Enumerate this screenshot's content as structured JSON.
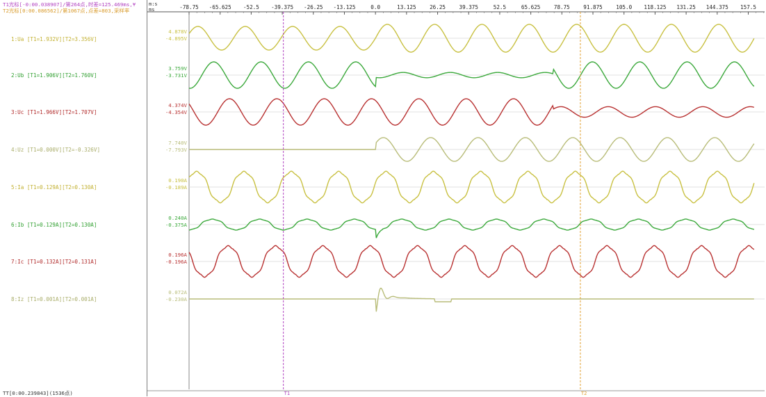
{
  "header": {
    "cursor1_info": "T1光标[-0:00.038907]/第264点,时差=125.469ms,¥",
    "cursor2_info": "T2光标[0:00.086562]/第1067点,点差=803,采样率",
    "time_unit_top": "m:s",
    "time_unit_bottom": "ms"
  },
  "footer": {
    "tt_info": "TT[0:00.239843](1536点)"
  },
  "cursors": [
    {
      "name": "T1",
      "color": "#b040c0"
    },
    {
      "name": "T2",
      "color": "#e0a030"
    }
  ],
  "channels": [
    {
      "label": "1:Ua [T1=1.932V][T2=3.356V]",
      "max": "4.878V",
      "min": "-4.895V",
      "color": "#c8c040"
    },
    {
      "label": "2:Ub [T1=1.906V][T2=1.760V]",
      "max": "3.759V",
      "min": "-3.731V",
      "color": "#3aa83a"
    },
    {
      "label": "3:Uc [T1=1.966V][T2=1.707V]",
      "max": "4.374V",
      "min": "-4.354V",
      "color": "#b83030"
    },
    {
      "label": "4:Uz [T1=0.000V][T2=-0.326V]",
      "max": "7.740V",
      "min": "-7.793V",
      "color": "#b8bc78"
    },
    {
      "label": "5:Ia [T1=0.129A][T2=0.130A]",
      "max": "0.190A",
      "min": "-0.189A",
      "color": "#c8c040"
    },
    {
      "label": "6:Ib [T1=0.129A][T2=0.130A]",
      "max": "0.240A",
      "min": "-0.375A",
      "color": "#3aa83a"
    },
    {
      "label": "7:Ic [T1=0.132A][T2=0.131A]",
      "max": "0.196A",
      "min": "-0.196A",
      "color": "#b83030"
    },
    {
      "label": "8:Iz [T1=0.001A][T2=0.001A]",
      "max": "0.072A",
      "min": "-0.230A",
      "color": "#b8bc78"
    }
  ],
  "chart_data": {
    "type": "line",
    "x_ticks": [
      "-78.75",
      "-65.625",
      "-52.5",
      "-39.375",
      "-26.25",
      "-13.125",
      "0.0",
      "13.125",
      "26.25",
      "39.375",
      "52.5",
      "65.625",
      "78.75",
      "91.875",
      "105.0",
      "118.125",
      "131.25",
      "144.375",
      "157.5"
    ],
    "x_tick_values": [
      -78.75,
      -65.625,
      -52.5,
      -39.375,
      -26.25,
      -13.125,
      0,
      13.125,
      26.25,
      39.375,
      52.5,
      65.625,
      78.75,
      91.875,
      105,
      118.125,
      131.25,
      144.375,
      157.5
    ],
    "xlim": [
      -78.75,
      160.0
    ],
    "period_ms": 20,
    "fault_start_ms": 0,
    "cursor_t1_ms": -38.907,
    "cursor_t2_ms": 86.562,
    "series": [
      {
        "name": "1:Ua",
        "pre_amp": 0.85,
        "post_amp": 1.0,
        "phase": 0
      },
      {
        "name": "2:Ub",
        "pre_amp": 1.0,
        "post_amp": 0.2,
        "post_amp_late": 1.0,
        "recover_ms": 75,
        "phase": -120
      },
      {
        "name": "3:Uc",
        "pre_amp": 1.0,
        "post_amp": 1.0,
        "post_amp_late": 0.4,
        "recover_ms": 75,
        "phase": 120
      },
      {
        "name": "4:Uz",
        "pre_amp": 0.0,
        "post_amp": 0.9,
        "phase": 30
      },
      {
        "name": "5:Ia",
        "pre_amp": 1.0,
        "post_amp": 1.0,
        "phase": 10
      },
      {
        "name": "6:Ib",
        "pre_amp": 0.7,
        "post_amp": 0.7,
        "phase": -110
      },
      {
        "name": "7:Ic",
        "pre_amp": 1.0,
        "post_amp": 1.0,
        "phase": 130
      },
      {
        "name": "8:Iz",
        "pre_amp": 0.0,
        "post_amp": 0.0,
        "phase": 0
      }
    ]
  }
}
